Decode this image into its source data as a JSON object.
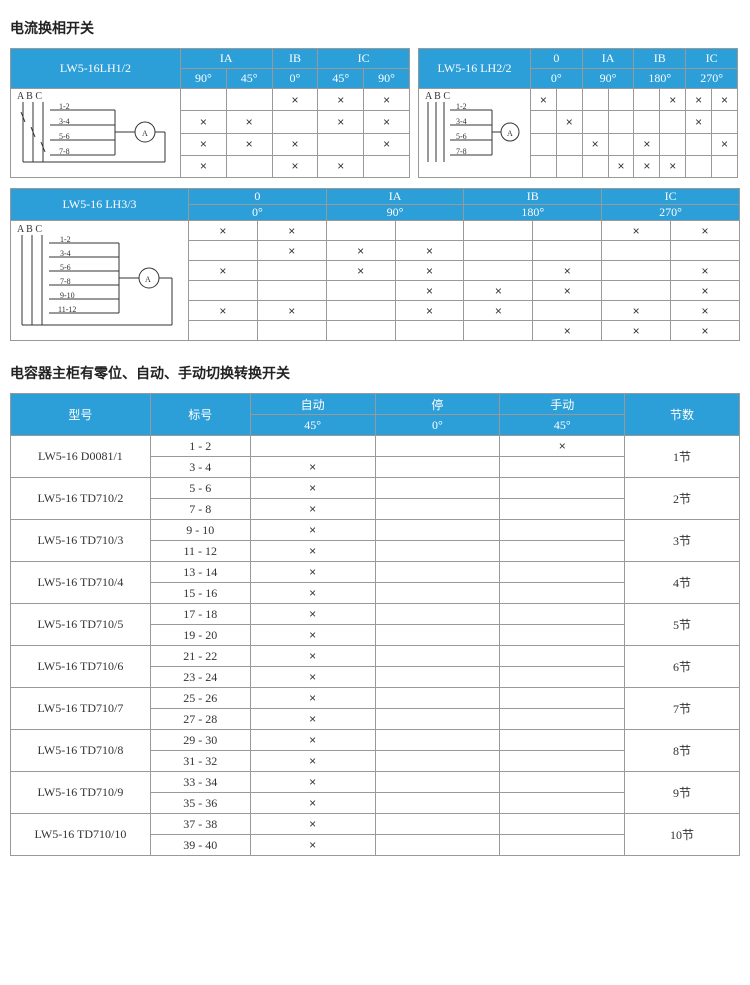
{
  "title1": "电流换相开关",
  "title2": "电容器主柜有零位、自动、手动切换转换开关",
  "colors": {
    "header_bg": "#2c9ed8",
    "header_fg": "#ffffff",
    "border": "#999999",
    "text": "#333333"
  },
  "mark": "×",
  "abc_label": "A B C",
  "ammeter_label": "A",
  "t1": {
    "model": "LW5-16LH1/2",
    "cols": [
      "IA",
      "IB",
      "IC"
    ],
    "angles": [
      "90°",
      "45°",
      "0°",
      "45°",
      "90°"
    ],
    "pins": [
      "1-2",
      "3-4",
      "5-6",
      "7-8"
    ],
    "marks": [
      [
        "",
        "",
        "×",
        "×",
        "×"
      ],
      [
        "×",
        "×",
        "",
        "×",
        "×"
      ],
      [
        "×",
        "×",
        "×",
        "",
        "×"
      ],
      [
        "×",
        "",
        "×",
        "×",
        ""
      ]
    ]
  },
  "t2": {
    "model": "LW5-16 LH2/2",
    "cols": [
      "0",
      "IA",
      "IB",
      "IC"
    ],
    "angles": [
      "0°",
      "90°",
      "180°",
      "270°"
    ],
    "pins": [
      "1-2",
      "3-4",
      "5-6",
      "7-8"
    ],
    "marks": [
      [
        "×",
        "",
        "",
        "",
        "",
        "×",
        "×",
        "×"
      ],
      [
        "",
        "×",
        "",
        "",
        "",
        "",
        "×",
        ""
      ],
      [
        "",
        "",
        "×",
        "",
        "×",
        "",
        "",
        "×"
      ],
      [
        "",
        "",
        "",
        "×",
        "×",
        "×",
        "",
        ""
      ]
    ]
  },
  "t3": {
    "model": "LW5-16 LH3/3",
    "cols": [
      "0",
      "IA",
      "IB",
      "IC"
    ],
    "angles": [
      "0°",
      "90°",
      "180°",
      "270°"
    ],
    "pins": [
      "1-2",
      "3-4",
      "5-6",
      "7-8",
      "9-10",
      "11-12"
    ],
    "marks": [
      [
        "×",
        "×",
        "",
        "",
        "",
        "",
        "×",
        "×"
      ],
      [
        "",
        "×",
        "×",
        "×",
        "",
        "",
        "",
        ""
      ],
      [
        "×",
        "",
        "×",
        "×",
        "",
        "×",
        "",
        "×"
      ],
      [
        "",
        "",
        "",
        "×",
        "×",
        "×",
        "",
        "×"
      ],
      [
        "×",
        "×",
        "",
        "×",
        "×",
        "",
        "×",
        "×"
      ],
      [
        "",
        "",
        "",
        "",
        "",
        "×",
        "×",
        "×"
      ]
    ]
  },
  "cap": {
    "headers": {
      "model": "型号",
      "mark": "标号",
      "auto": "自动",
      "stop": "停",
      "manual": "手动",
      "sections": "节数"
    },
    "angles": {
      "auto": "45°",
      "stop": "0°",
      "manual": "45°"
    },
    "rows": [
      {
        "model": "LW5-16 D0081/1",
        "marks": [
          "1 - 2",
          "3 - 4"
        ],
        "vals": [
          [
            "",
            "",
            "×"
          ],
          [
            "×",
            "",
            ""
          ]
        ],
        "sections": "1节"
      },
      {
        "model": "LW5-16 TD710/2",
        "marks": [
          "5 - 6",
          "7 - 8"
        ],
        "vals": [
          [
            "×",
            "",
            ""
          ],
          [
            "×",
            "",
            ""
          ]
        ],
        "sections": "2节"
      },
      {
        "model": "LW5-16 TD710/3",
        "marks": [
          "9 - 10",
          "11 - 12"
        ],
        "vals": [
          [
            "×",
            "",
            ""
          ],
          [
            "×",
            "",
            ""
          ]
        ],
        "sections": "3节"
      },
      {
        "model": "LW5-16 TD710/4",
        "marks": [
          "13 - 14",
          "15 - 16"
        ],
        "vals": [
          [
            "×",
            "",
            ""
          ],
          [
            "×",
            "",
            ""
          ]
        ],
        "sections": "4节"
      },
      {
        "model": "LW5-16 TD710/5",
        "marks": [
          "17 - 18",
          "19 - 20"
        ],
        "vals": [
          [
            "×",
            "",
            ""
          ],
          [
            "×",
            "",
            ""
          ]
        ],
        "sections": "5节"
      },
      {
        "model": "LW5-16 TD710/6",
        "marks": [
          "21 - 22",
          "23 - 24"
        ],
        "vals": [
          [
            "×",
            "",
            ""
          ],
          [
            "×",
            "",
            ""
          ]
        ],
        "sections": "6节"
      },
      {
        "model": "LW5-16 TD710/7",
        "marks": [
          "25 - 26",
          "27 - 28"
        ],
        "vals": [
          [
            "×",
            "",
            ""
          ],
          [
            "×",
            "",
            ""
          ]
        ],
        "sections": "7节"
      },
      {
        "model": "LW5-16 TD710/8",
        "marks": [
          "29 - 30",
          "31 - 32"
        ],
        "vals": [
          [
            "×",
            "",
            ""
          ],
          [
            "×",
            "",
            ""
          ]
        ],
        "sections": "8节"
      },
      {
        "model": "LW5-16 TD710/9",
        "marks": [
          "33 - 34",
          "35 - 36"
        ],
        "vals": [
          [
            "×",
            "",
            ""
          ],
          [
            "×",
            "",
            ""
          ]
        ],
        "sections": "9节"
      },
      {
        "model": "LW5-16 TD710/10",
        "marks": [
          "37 - 38",
          "39 - 40"
        ],
        "vals": [
          [
            "×",
            "",
            ""
          ],
          [
            "×",
            "",
            ""
          ]
        ],
        "sections": "10节"
      }
    ]
  }
}
